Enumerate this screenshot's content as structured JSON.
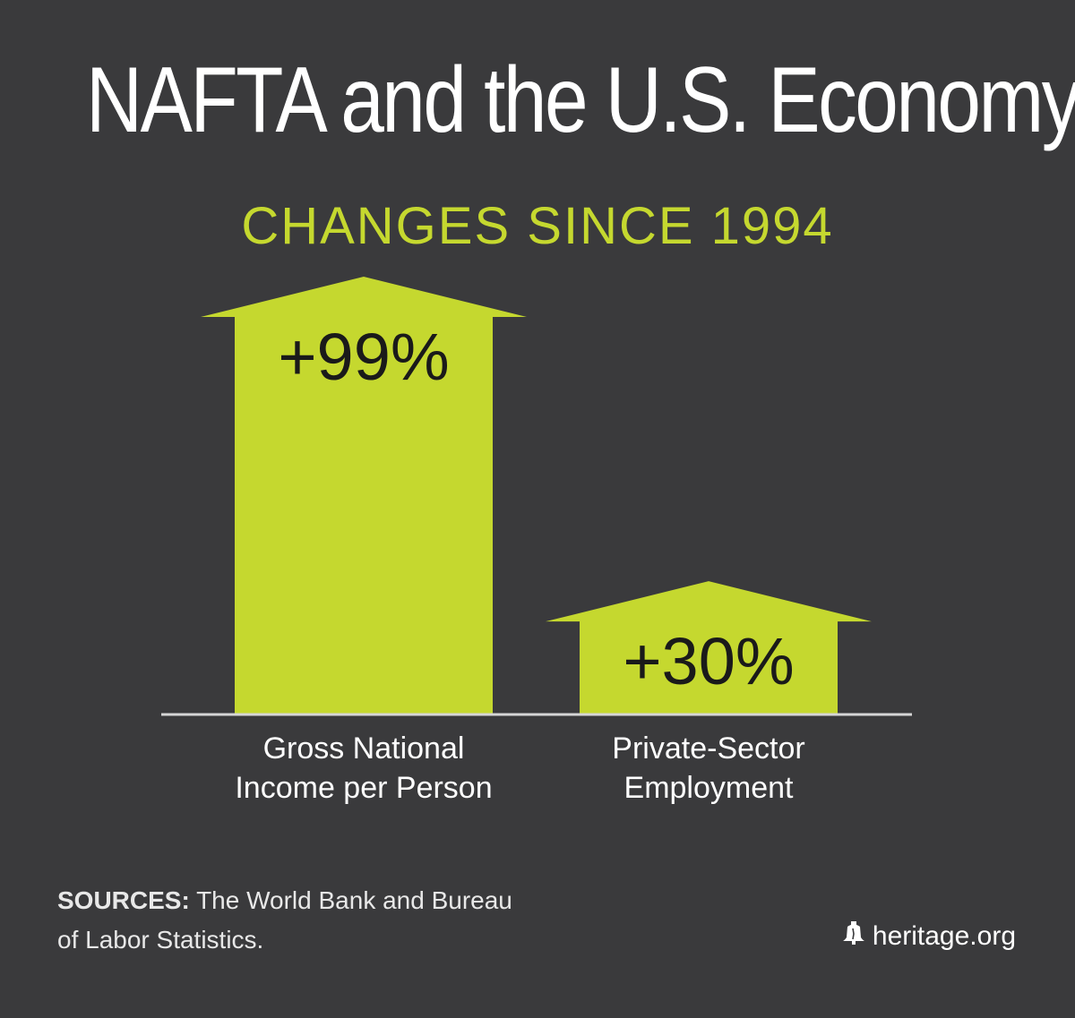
{
  "title": "NAFTA and the U.S. Economy",
  "subtitle": "CHANGES SINCE 1994",
  "chart_data": {
    "type": "bar",
    "categories": [
      [
        "Gross National",
        "Income per Person"
      ],
      [
        "Private-Sector",
        "Employment"
      ]
    ],
    "values": [
      99,
      30
    ],
    "value_labels": [
      "+99%",
      "+30%"
    ],
    "unit": "%",
    "xlabel": "",
    "ylabel": "",
    "grid": false,
    "legend": "none"
  },
  "colors": {
    "background": "#3a3a3c",
    "bar": "#c5d82f",
    "title": "#ffffff",
    "subtitle": "#c5d82f"
  },
  "sources": {
    "label": "SOURCES:",
    "line1": "The World Bank and Bureau",
    "line2": "of Labor Statistics."
  },
  "brand": {
    "icon": "liberty-bell-icon",
    "text": "heritage.org"
  }
}
